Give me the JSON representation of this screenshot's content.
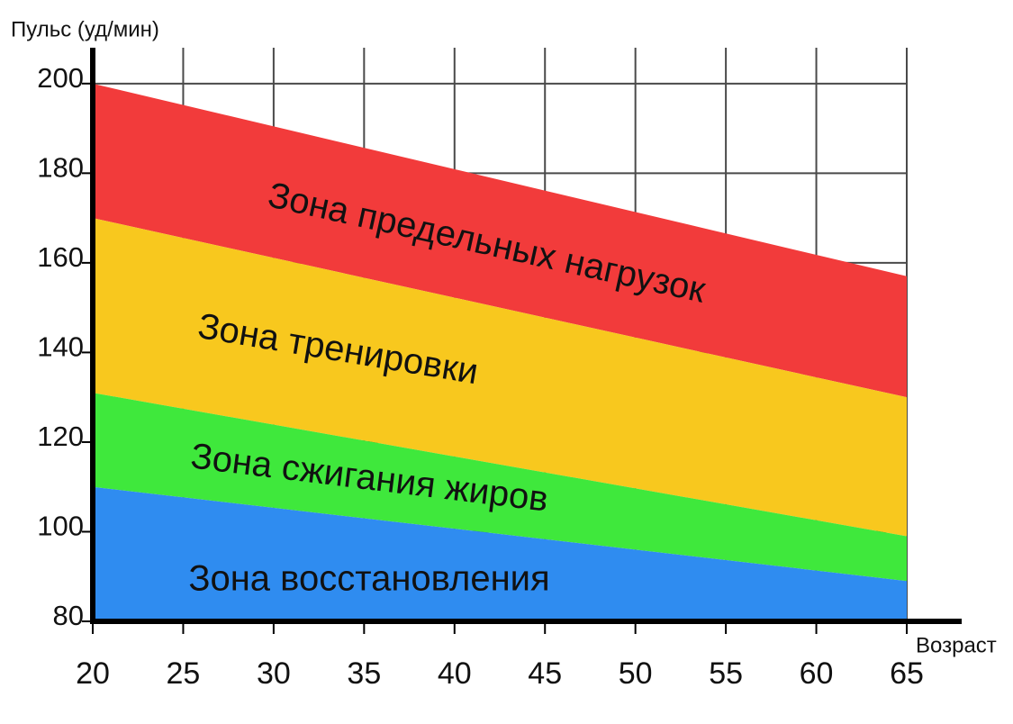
{
  "chart_data": {
    "type": "zones",
    "y_label": "Пульс (уд/мин)",
    "x_label": "Возраст",
    "x": [
      20,
      65
    ],
    "series": [
      {
        "name": "Зона предельных нагрузок",
        "color": "#f23b3b",
        "values": [
          200,
          157
        ]
      },
      {
        "name": "Зона тренировки",
        "color": "#f8c81e",
        "values": [
          170,
          130
        ]
      },
      {
        "name": "Зона сжигания жиров",
        "color": "#3fe83c",
        "values": [
          131,
          99
        ]
      },
      {
        "name": "Зона восстановления",
        "color": "#2f8cf0",
        "values": [
          110,
          89
        ]
      }
    ],
    "xlim": [
      20,
      65
    ],
    "xticks": [
      20,
      25,
      30,
      35,
      40,
      45,
      50,
      55,
      60,
      65
    ],
    "ylim": [
      80,
      208
    ],
    "yticks": [
      80,
      100,
      120,
      140,
      160,
      180,
      200
    ],
    "grid": true
  }
}
